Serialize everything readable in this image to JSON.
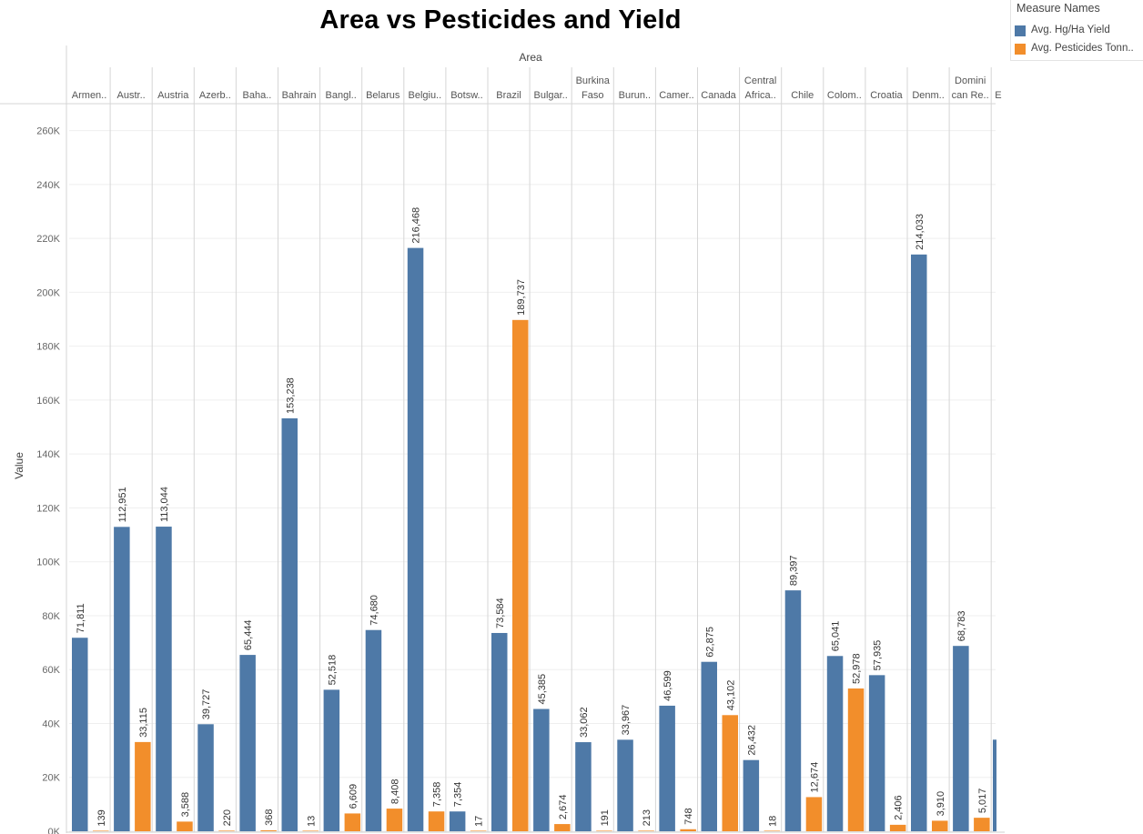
{
  "chart_data": {
    "type": "bar",
    "title": "Area vs Pesticides and Yield",
    "xlabel": "Area",
    "ylabel": "Value",
    "ylim": [
      0,
      270000
    ],
    "y_ticks": [
      0,
      20000,
      40000,
      60000,
      80000,
      100000,
      120000,
      140000,
      160000,
      180000,
      200000,
      220000,
      240000,
      260000
    ],
    "y_tick_labels": [
      "0K",
      "20K",
      "40K",
      "60K",
      "80K",
      "100K",
      "120K",
      "140K",
      "160K",
      "180K",
      "200K",
      "220K",
      "240K",
      "260K"
    ],
    "grid": true,
    "legend_position": "top-right",
    "legend_title": "Measure Names",
    "categories": [
      {
        "label": [
          "Armen.."
        ]
      },
      {
        "label": [
          "Austr.."
        ]
      },
      {
        "label": [
          "Austria"
        ]
      },
      {
        "label": [
          "Azerb.."
        ]
      },
      {
        "label": [
          "Baha.."
        ]
      },
      {
        "label": [
          "Bahrain"
        ]
      },
      {
        "label": [
          "Bangl.."
        ]
      },
      {
        "label": [
          "Belarus"
        ]
      },
      {
        "label": [
          "Belgiu.."
        ]
      },
      {
        "label": [
          "Botsw.."
        ]
      },
      {
        "label": [
          "Brazil"
        ]
      },
      {
        "label": [
          "Bulgar.."
        ]
      },
      {
        "label": [
          "Burkina",
          "Faso"
        ]
      },
      {
        "label": [
          "Burun.."
        ]
      },
      {
        "label": [
          "Camer.."
        ]
      },
      {
        "label": [
          "Canada"
        ]
      },
      {
        "label": [
          "Central",
          "Africa.."
        ]
      },
      {
        "label": [
          "Chile"
        ]
      },
      {
        "label": [
          "Colom.."
        ]
      },
      {
        "label": [
          "Croatia"
        ]
      },
      {
        "label": [
          "Denm.."
        ]
      },
      {
        "label": [
          "Domini",
          "can Re.."
        ]
      },
      {
        "label": [
          "E"
        ]
      }
    ],
    "series": [
      {
        "name": "Avg. Hg/Ha Yield",
        "color": "#4e79a7",
        "values": [
          71811,
          112951,
          113044,
          39727,
          65444,
          153238,
          52518,
          74680,
          216468,
          7354,
          73584,
          45385,
          33062,
          33967,
          46599,
          62875,
          26432,
          89397,
          65041,
          57935,
          214033,
          68783,
          34000
        ],
        "labels": [
          "71,811",
          "112,951",
          "113,044",
          "39,727",
          "65,444",
          "153,238",
          "52,518",
          "74,680",
          "216,468",
          "7,354",
          "73,584",
          "45,385",
          "33,062",
          "33,967",
          "46,599",
          "62,875",
          "26,432",
          "89,397",
          "65,041",
          "57,935",
          "214,033",
          "68,783",
          ""
        ]
      },
      {
        "name": "Avg. Pesticides Tonn..",
        "color": "#f28e2b",
        "values": [
          139,
          33115,
          3588,
          220,
          368,
          13,
          6609,
          8408,
          7358,
          17,
          189737,
          2674,
          191,
          213,
          748,
          43102,
          18,
          12674,
          52978,
          2406,
          3910,
          5017,
          null
        ],
        "labels": [
          "139",
          "33,115",
          "3,588",
          "220",
          "368",
          "13",
          "6,609",
          "8,408",
          "7,358",
          "17",
          "189,737",
          "2,674",
          "191",
          "213",
          "748",
          "43,102",
          "18",
          "12,674",
          "52,978",
          "2,406",
          "3,910",
          "5,017",
          ""
        ]
      }
    ]
  }
}
